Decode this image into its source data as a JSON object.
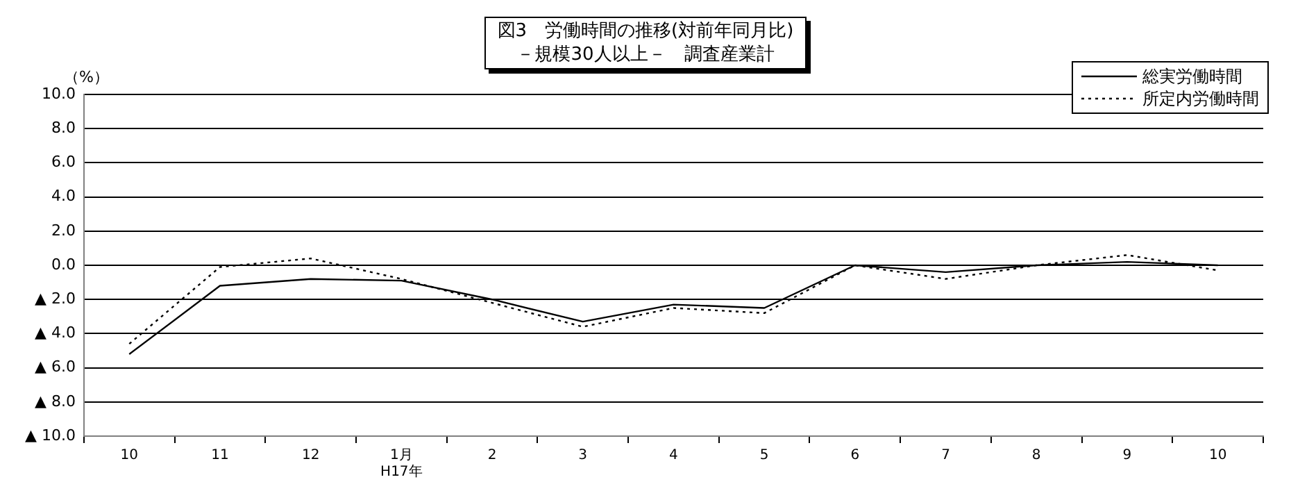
{
  "chart_data": {
    "type": "line",
    "title": "図3　労働時間の推移(対前年同月比)",
    "subtitle": "－規模30人以上－　調査産業計",
    "ylabel": "（%）",
    "categories": [
      "10",
      "11",
      "12",
      "1月\nH17年",
      "2",
      "3",
      "4",
      "5",
      "6",
      "7",
      "8",
      "9",
      "10"
    ],
    "series": [
      {
        "name": "総実労働時間",
        "color": "#000000",
        "line_style": "solid",
        "values": [
          -5.2,
          -1.2,
          -0.8,
          -0.9,
          -2.0,
          -3.3,
          -2.3,
          -2.5,
          0.0,
          -0.4,
          0.0,
          0.2,
          0.0
        ]
      },
      {
        "name": "所定内労働時間",
        "color": "#000000",
        "line_style": "dotted",
        "values": [
          -4.6,
          -0.1,
          0.4,
          -0.8,
          -2.2,
          -3.6,
          -2.5,
          -2.8,
          0.0,
          -0.8,
          0.0,
          0.6,
          -0.3
        ]
      }
    ],
    "ylim": [
      -10,
      10
    ],
    "yticks": [
      {
        "value": 10,
        "label": "10.0"
      },
      {
        "value": 8,
        "label": "8.0"
      },
      {
        "value": 6,
        "label": "6.0"
      },
      {
        "value": 4,
        "label": "4.0"
      },
      {
        "value": 2,
        "label": "2.0"
      },
      {
        "value": 0,
        "label": "0.0"
      },
      {
        "value": -2,
        "label": "▲ 2.0"
      },
      {
        "value": -4,
        "label": "▲ 4.0"
      },
      {
        "value": -6,
        "label": "▲ 6.0"
      },
      {
        "value": -8,
        "label": "▲ 8.0"
      },
      {
        "value": -10,
        "label": "▲ 10.0"
      }
    ],
    "grid": "y",
    "legend": "top right",
    "marker": "none"
  }
}
